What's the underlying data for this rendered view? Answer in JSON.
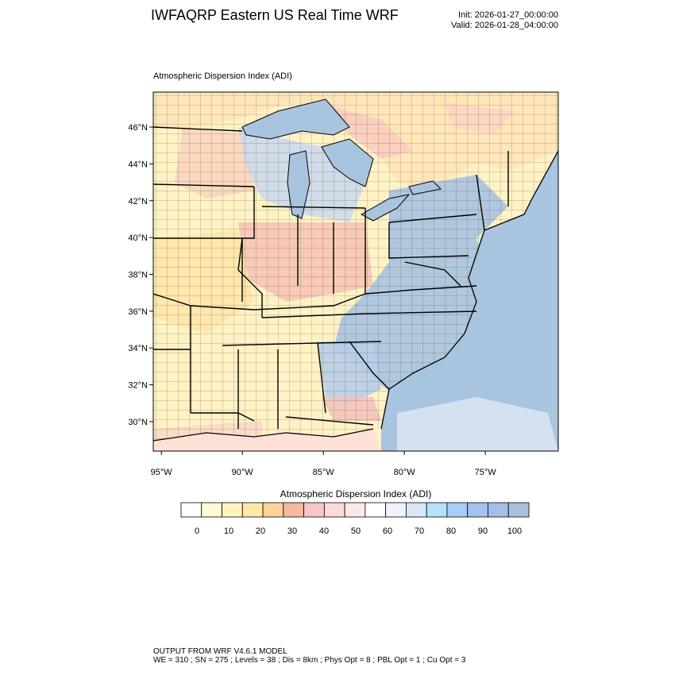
{
  "header": {
    "title": "IWFAQRP Eastern US Real Time WRF",
    "init": "Init: 2026-01-27_00:00:00",
    "valid": "Valid: 2026-01-28_04:00:00"
  },
  "panel_title": "Atmospheric Dispersion Index   (ADI)",
  "map": {
    "lat_labels": [
      "46°N",
      "44°N",
      "42°N",
      "40°N",
      "38°N",
      "36°N",
      "34°N",
      "32°N",
      "30°N"
    ],
    "lat_values": [
      46,
      44,
      42,
      40,
      38,
      36,
      34,
      32,
      30
    ],
    "lon_labels": [
      "95°W",
      "90°W",
      "85°W",
      "80°W",
      "75°W"
    ],
    "lon_values": [
      -95,
      -90,
      -85,
      -80,
      -75
    ],
    "extent": {
      "lon_min": -95.5,
      "lon_max": -70.5,
      "lat_min": 28.4,
      "lat_max": 47.9
    },
    "colors": {
      "water": "#a9c4df",
      "lake": "#a9c4df",
      "border": "#000000"
    }
  },
  "colorbar": {
    "title": "Atmospheric Dispersion Index  (ADI)",
    "tick_labels": [
      "0",
      "10",
      "20",
      "30",
      "40",
      "50",
      "60",
      "70",
      "80",
      "90",
      "100"
    ],
    "tick_values": [
      0,
      10,
      20,
      30,
      40,
      50,
      60,
      70,
      80,
      90,
      100
    ],
    "colors": [
      "#ffffff",
      "#fffbd6",
      "#fff3c0",
      "#ffe8a8",
      "#fdd39a",
      "#f6b89e",
      "#f8c6c6",
      "#fbdad8",
      "#fde8e6",
      "#ffffff",
      "#eef2fb",
      "#d8e8f6",
      "#b3e3fb",
      "#a7cdf3",
      "#a4c2f0",
      "#a6bde8",
      "#a8c0dc"
    ]
  },
  "footer": {
    "line1": "OUTPUT FROM WRF V4.6.1 MODEL",
    "line2": "WE = 310 ; SN = 275 ; Levels = 38 ; Dis = 8km ; Phys Opt = 8 ; PBL Opt = 1 ; Cu Opt = 3"
  }
}
